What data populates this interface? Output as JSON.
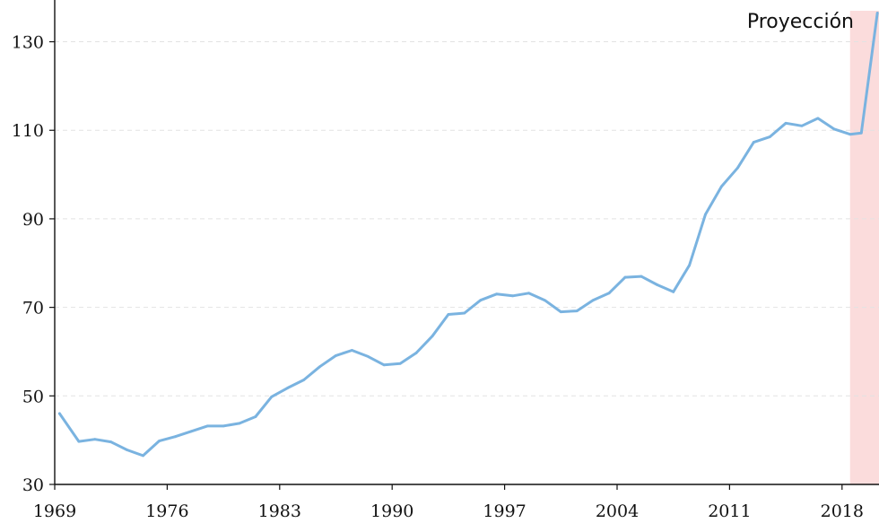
{
  "chart_data": {
    "type": "line",
    "title": "",
    "xlabel": "",
    "ylabel": "",
    "xlim": [
      1969,
      2020.3
    ],
    "ylim": [
      30,
      137
    ],
    "x_ticks": [
      1969,
      1976,
      1983,
      1990,
      1997,
      2004,
      2011,
      2018
    ],
    "y_ticks": [
      30,
      50,
      70,
      90,
      110,
      130
    ],
    "grid": "horizontal dashed",
    "annotation": "Proyección",
    "projection_start": 2018.5,
    "colors": {
      "line": "#7ab3e0",
      "projection_band": "#fbdcdc",
      "grid": "#e2e2e2",
      "axis": "#111111"
    },
    "series": [
      {
        "values": [
          [
            1969.3,
            46
          ],
          [
            1970.5,
            39.7
          ],
          [
            1971.5,
            40.2
          ],
          [
            1972.5,
            39.6
          ],
          [
            1973.5,
            37.8
          ],
          [
            1974.5,
            36.5
          ],
          [
            1975.5,
            39.8
          ],
          [
            1976.5,
            40.8
          ],
          [
            1977.5,
            42.0
          ],
          [
            1978.5,
            43.2
          ],
          [
            1979.5,
            43.2
          ],
          [
            1980.5,
            43.8
          ],
          [
            1981.5,
            45.3
          ],
          [
            1982.5,
            49.8
          ],
          [
            1983.5,
            51.8
          ],
          [
            1984.5,
            53.6
          ],
          [
            1985.5,
            56.6
          ],
          [
            1986.5,
            59.1
          ],
          [
            1987.5,
            60.3
          ],
          [
            1988.5,
            58.9
          ],
          [
            1989.5,
            57.0
          ],
          [
            1990.5,
            57.3
          ],
          [
            1991.5,
            59.7
          ],
          [
            1992.5,
            63.5
          ],
          [
            1993.5,
            68.4
          ],
          [
            1994.5,
            68.7
          ],
          [
            1995.5,
            71.6
          ],
          [
            1996.5,
            73.0
          ],
          [
            1997.5,
            72.6
          ],
          [
            1998.5,
            73.2
          ],
          [
            1999.5,
            71.6
          ],
          [
            2000.5,
            69.0
          ],
          [
            2001.5,
            69.2
          ],
          [
            2002.5,
            71.6
          ],
          [
            2003.5,
            73.2
          ],
          [
            2004.5,
            76.8
          ],
          [
            2005.5,
            77.0
          ],
          [
            2006.5,
            75.1
          ],
          [
            2007.5,
            73.5
          ],
          [
            2008.5,
            79.5
          ],
          [
            2009.5,
            91.0
          ],
          [
            2010.5,
            97.3
          ],
          [
            2011.5,
            101.5
          ],
          [
            2012.5,
            107.3
          ],
          [
            2013.5,
            108.5
          ],
          [
            2014.5,
            111.6
          ],
          [
            2015.5,
            111.0
          ],
          [
            2016.5,
            112.7
          ],
          [
            2017.5,
            110.3
          ],
          [
            2018.5,
            109.1
          ],
          [
            2019.2,
            109.4
          ],
          [
            2020.2,
            136.5
          ]
        ]
      }
    ]
  }
}
